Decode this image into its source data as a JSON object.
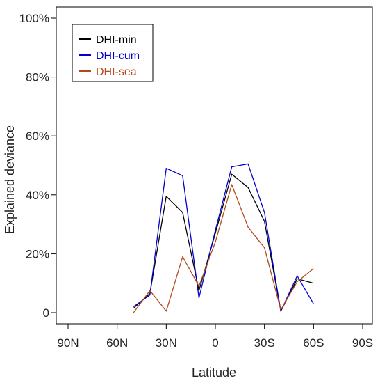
{
  "chart_data": {
    "type": "line",
    "title": "",
    "xlabel": "Latitude",
    "ylabel": "Explained deviance",
    "xlim": [
      -90,
      90
    ],
    "ylim": [
      0,
      100
    ],
    "x_ticks": [
      -90,
      -60,
      -30,
      0,
      30,
      60,
      90
    ],
    "x_tick_labels": [
      "90N",
      "60N",
      "30N",
      "0",
      "30S",
      "60S",
      "90S"
    ],
    "y_ticks": [
      0,
      20,
      40,
      60,
      80,
      100
    ],
    "y_tick_labels": [
      "0",
      "20%",
      "40%",
      "60%",
      "80%",
      "100%"
    ],
    "grid": false,
    "legend_position": "top-left",
    "x": [
      -50,
      -40,
      -30,
      -20,
      -10,
      0,
      10,
      20,
      30,
      40,
      50,
      60
    ],
    "series": [
      {
        "name": "DHI-min",
        "color": "#000000",
        "values": [
          1.5,
          6.5,
          39.5,
          34,
          7.5,
          27,
          47,
          42.5,
          31,
          0.5,
          11.5,
          10
        ]
      },
      {
        "name": "DHI-cum",
        "color": "#0000cc",
        "values": [
          2,
          6,
          49,
          46.5,
          5,
          28,
          49.5,
          50.5,
          34,
          0.5,
          12.5,
          3
        ]
      },
      {
        "name": "DHI-sea",
        "color": "#b5471b",
        "values": [
          0,
          7.5,
          0.5,
          19,
          9,
          24,
          43.5,
          29,
          22,
          1,
          10.5,
          15
        ]
      }
    ]
  }
}
